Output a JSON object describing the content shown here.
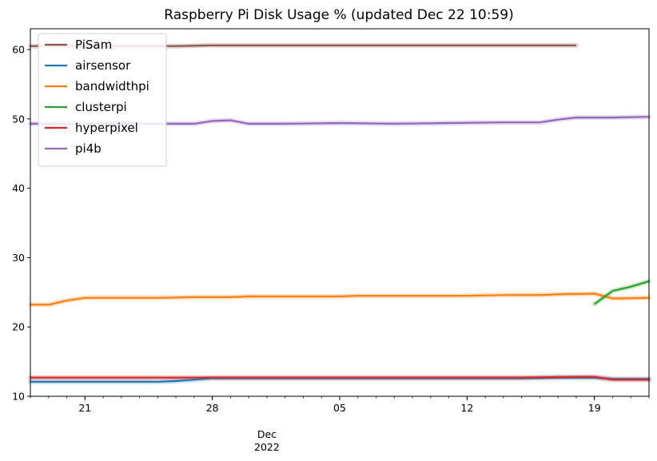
{
  "chart_data": {
    "type": "line",
    "title": "Raspberry Pi Disk Usage % (updated Dec 22 10:59)",
    "xlabel": "",
    "ylabel": "",
    "x_start": "2022-11-18",
    "x_end": "2022-12-22",
    "xlim": [
      "2022-11-18",
      "2022-12-22"
    ],
    "ylim": [
      10,
      63
    ],
    "x_ticks": [
      {
        "date": "2022-11-21",
        "label": "21"
      },
      {
        "date": "2022-11-28",
        "label": "28"
      },
      {
        "date": "2022-12-05",
        "label": "05"
      },
      {
        "date": "2022-12-12",
        "label": "12"
      },
      {
        "date": "2022-12-19",
        "label": "19"
      }
    ],
    "x_month_label": "Dec",
    "x_month_label_date": "2022-12-01",
    "x_year_label": "2022",
    "y_ticks": [
      10,
      20,
      30,
      40,
      50,
      60
    ],
    "grid": false,
    "legend": "top-left",
    "series": [
      {
        "name": "PiSam",
        "color": "#8c564b",
        "points": [
          [
            "2022-11-18",
            60.5
          ],
          [
            "2022-11-20",
            60.5
          ],
          [
            "2022-11-22",
            60.5
          ],
          [
            "2022-11-24",
            60.5
          ],
          [
            "2022-11-26",
            60.5
          ],
          [
            "2022-11-28",
            60.6
          ],
          [
            "2022-11-30",
            60.6
          ],
          [
            "2022-12-02",
            60.6
          ],
          [
            "2022-12-05",
            60.6
          ],
          [
            "2022-12-08",
            60.6
          ],
          [
            "2022-12-12",
            60.6
          ],
          [
            "2022-12-15",
            60.6
          ],
          [
            "2022-12-18",
            60.6
          ]
        ]
      },
      {
        "name": "airsensor",
        "color": "#1f77b4",
        "points": [
          [
            "2022-11-18",
            12.1
          ],
          [
            "2022-11-20",
            12.1
          ],
          [
            "2022-11-22",
            12.1
          ],
          [
            "2022-11-24",
            12.1
          ],
          [
            "2022-11-25",
            12.1
          ],
          [
            "2022-11-26",
            12.2
          ],
          [
            "2022-11-27",
            12.4
          ],
          [
            "2022-11-28",
            12.6
          ],
          [
            "2022-12-01",
            12.6
          ],
          [
            "2022-12-05",
            12.6
          ],
          [
            "2022-12-09",
            12.6
          ],
          [
            "2022-12-12",
            12.6
          ],
          [
            "2022-12-15",
            12.6
          ],
          [
            "2022-12-17",
            12.7
          ],
          [
            "2022-12-19",
            12.7
          ],
          [
            "2022-12-20",
            12.5
          ],
          [
            "2022-12-22",
            12.5
          ]
        ]
      },
      {
        "name": "bandwidthpi",
        "color": "#ff7f0e",
        "points": [
          [
            "2022-11-18",
            23.2
          ],
          [
            "2022-11-19",
            23.2
          ],
          [
            "2022-11-20",
            23.8
          ],
          [
            "2022-11-21",
            24.2
          ],
          [
            "2022-11-23",
            24.2
          ],
          [
            "2022-11-25",
            24.2
          ],
          [
            "2022-11-27",
            24.3
          ],
          [
            "2022-11-29",
            24.3
          ],
          [
            "2022-11-30",
            24.4
          ],
          [
            "2022-12-02",
            24.4
          ],
          [
            "2022-12-05",
            24.4
          ],
          [
            "2022-12-06",
            24.5
          ],
          [
            "2022-12-09",
            24.5
          ],
          [
            "2022-12-12",
            24.5
          ],
          [
            "2022-12-14",
            24.6
          ],
          [
            "2022-12-16",
            24.6
          ],
          [
            "2022-12-17",
            24.7
          ],
          [
            "2022-12-19",
            24.8
          ],
          [
            "2022-12-20",
            24.1
          ],
          [
            "2022-12-22",
            24.2
          ]
        ]
      },
      {
        "name": "clusterpi",
        "color": "#2ca02c",
        "points": [
          [
            "2022-12-19",
            23.3
          ],
          [
            "2022-12-20",
            25.2
          ],
          [
            "2022-12-21",
            25.8
          ],
          [
            "2022-12-22",
            26.6
          ]
        ]
      },
      {
        "name": "hyperpixel",
        "color": "#d62728",
        "points": [
          [
            "2022-11-18",
            12.7
          ],
          [
            "2022-11-22",
            12.7
          ],
          [
            "2022-11-26",
            12.7
          ],
          [
            "2022-11-30",
            12.7
          ],
          [
            "2022-12-05",
            12.7
          ],
          [
            "2022-12-10",
            12.7
          ],
          [
            "2022-12-15",
            12.7
          ],
          [
            "2022-12-18",
            12.8
          ],
          [
            "2022-12-19",
            12.8
          ],
          [
            "2022-12-20",
            12.4
          ],
          [
            "2022-12-22",
            12.4
          ]
        ]
      },
      {
        "name": "pi4b",
        "color": "#9467bd",
        "points": [
          [
            "2022-11-18",
            49.3
          ],
          [
            "2022-11-21",
            49.3
          ],
          [
            "2022-11-24",
            49.3
          ],
          [
            "2022-11-27",
            49.3
          ],
          [
            "2022-11-28",
            49.7
          ],
          [
            "2022-11-29",
            49.8
          ],
          [
            "2022-11-30",
            49.3
          ],
          [
            "2022-12-02",
            49.3
          ],
          [
            "2022-12-05",
            49.4
          ],
          [
            "2022-12-08",
            49.3
          ],
          [
            "2022-12-11",
            49.4
          ],
          [
            "2022-12-14",
            49.5
          ],
          [
            "2022-12-16",
            49.5
          ],
          [
            "2022-12-17",
            49.9
          ],
          [
            "2022-12-18",
            50.2
          ],
          [
            "2022-12-20",
            50.2
          ],
          [
            "2022-12-22",
            50.3
          ]
        ]
      }
    ]
  }
}
